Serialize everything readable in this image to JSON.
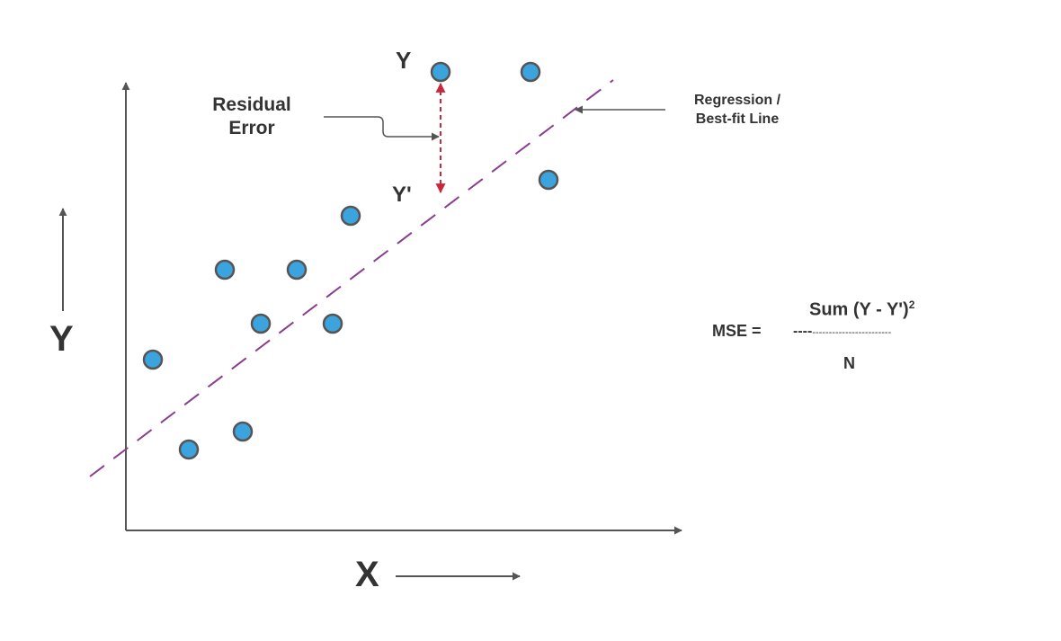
{
  "colors": {
    "axis": "#555555",
    "point_fill": "#3ba3de",
    "point_stroke": "#555555",
    "regression_line": "#8a3c8f",
    "residual": "#c8283c",
    "text": "#333333"
  },
  "labels": {
    "y_axis": "Y",
    "x_axis": "X",
    "actual_y": "Y",
    "predicted_y": "Y'",
    "residual_line1": "Residual",
    "residual_line2": "Error",
    "regression_line1": "Regression /",
    "regression_line2": "Best-fit Line"
  },
  "formula": {
    "lhs": "MSE =",
    "numerator": "Sum (Y - Y')",
    "exponent": "2",
    "bar_bold": "----",
    "bar_fine": "------------------------",
    "denominator": "N"
  },
  "icons": [
    "arrow-up-icon",
    "arrow-right-icon"
  ]
}
